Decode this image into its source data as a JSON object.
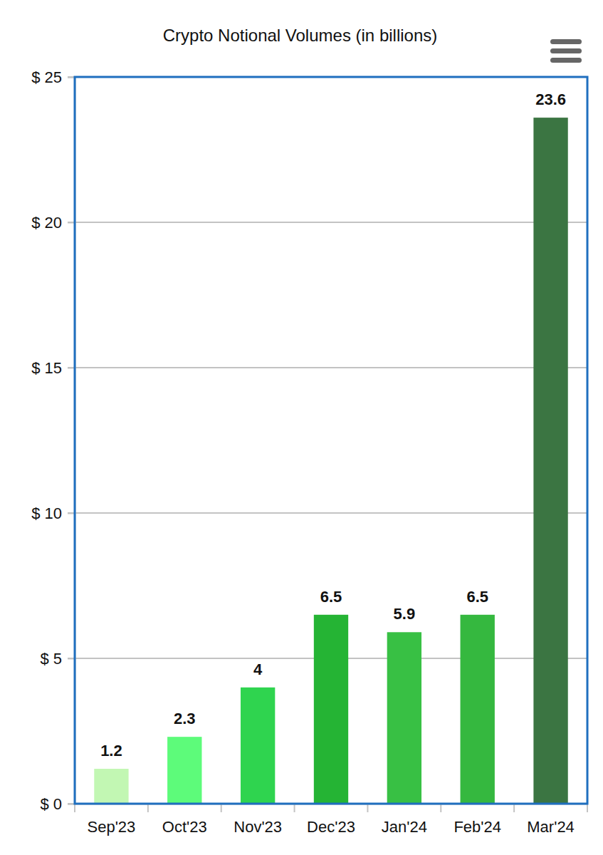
{
  "chart_data": {
    "type": "bar",
    "title": "Crypto Notional Volumes (in billions)",
    "categories": [
      "Sep'23",
      "Oct'23",
      "Nov'23",
      "Dec'23",
      "Jan'24",
      "Feb'24",
      "Mar'24"
    ],
    "values": [
      1.2,
      2.3,
      4,
      6.5,
      5.9,
      6.5,
      23.6
    ],
    "colors": [
      "#c2f7b3",
      "#5dfb7a",
      "#2fd44f",
      "#25b434",
      "#38c044",
      "#35b83f",
      "#3b7542"
    ],
    "ylim": [
      0,
      25
    ],
    "yticks": [
      {
        "value": 0,
        "label": "$ 0"
      },
      {
        "value": 5,
        "label": "$ 5"
      },
      {
        "value": 10,
        "label": "$ 10"
      },
      {
        "value": 15,
        "label": "$ 15"
      },
      {
        "value": 20,
        "label": "$ 20"
      },
      {
        "value": 25,
        "label": "$ 25"
      }
    ],
    "grid": true,
    "data_labels": true
  }
}
